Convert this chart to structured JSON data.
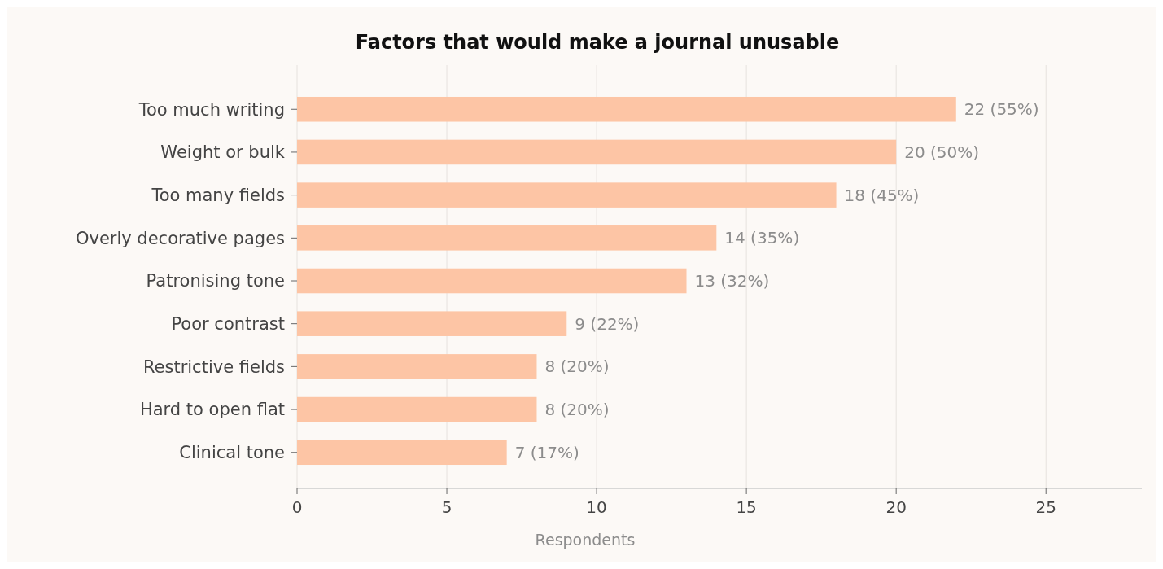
{
  "chart_data": {
    "type": "bar",
    "orientation": "horizontal",
    "title": "Factors that would make a journal unusable",
    "xlabel": "Respondents",
    "categories": [
      "Too much writing",
      "Weight or bulk",
      "Too many fields",
      "Overly decorative pages",
      "Patronising tone",
      "Poor contrast",
      "Restrictive fields",
      "Hard to open flat",
      "Clinical tone"
    ],
    "values": [
      22,
      20,
      18,
      14,
      13,
      9,
      8,
      8,
      7
    ],
    "value_labels": [
      "22 (55%)",
      "20 (50%)",
      "18 (45%)",
      "14 (35%)",
      "13 (32%)",
      "9 (22%)",
      "8 (20%)",
      "8 (20%)",
      "7 (17%)"
    ],
    "color": "#fdc5a5",
    "xlim": [
      0,
      28.2
    ],
    "xticks": [
      0,
      5,
      10,
      15,
      20,
      25
    ],
    "grid": "x"
  }
}
